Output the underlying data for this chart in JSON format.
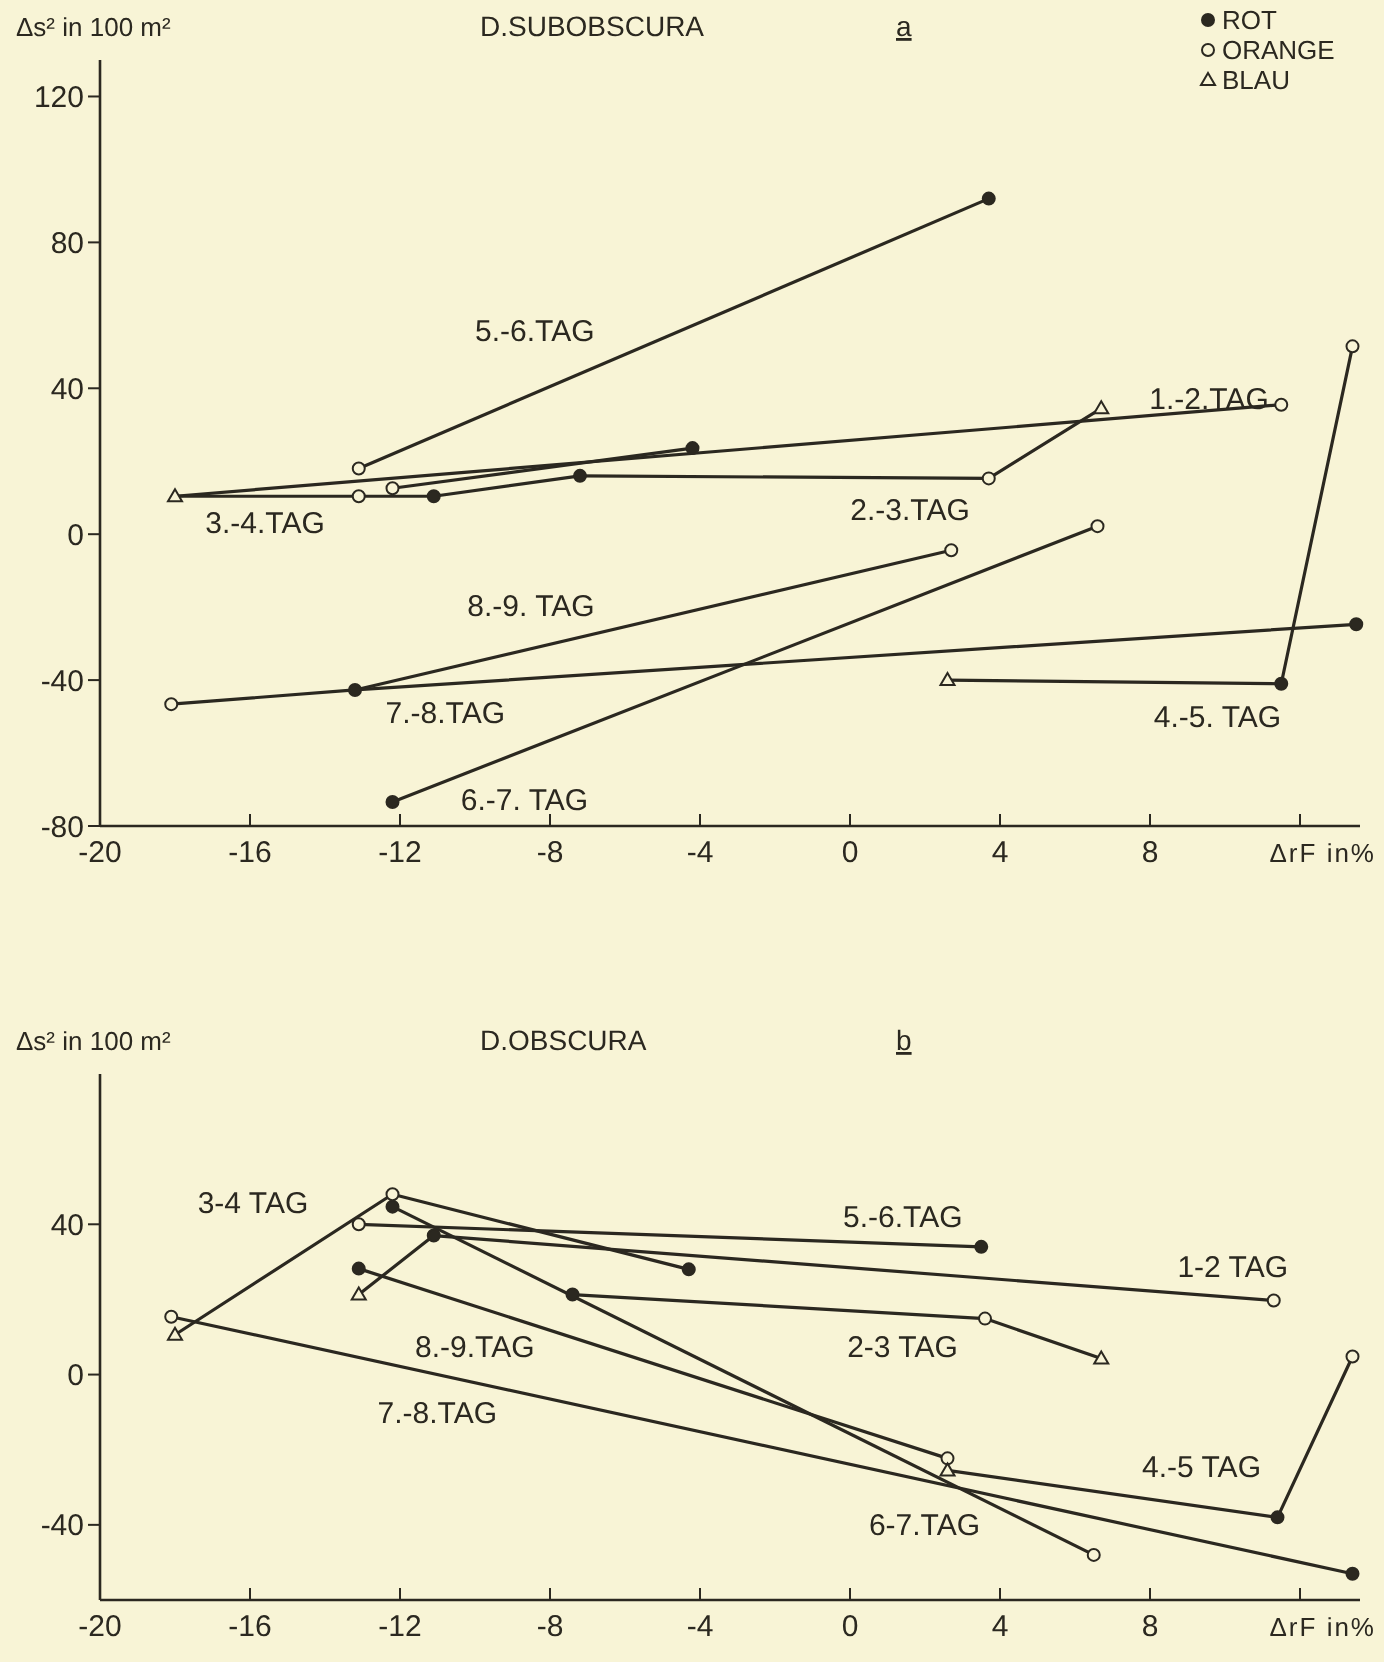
{
  "chart_data": [
    {
      "type": "line",
      "title": "D.SUBOBSCURA",
      "subtitle": "a",
      "xlabel": "ΔrF in%",
      "ylabel": "Δs² in 100 m²",
      "xlim": [
        -20,
        13.6
      ],
      "ylim": [
        -80,
        130
      ],
      "xticks": [
        -20,
        -16,
        -12,
        -8,
        -4,
        0,
        4,
        8,
        {
          "value": 12,
          "label": null
        }
      ],
      "yticks": [
        -80,
        -40,
        0,
        40,
        80,
        120
      ],
      "grid": false,
      "legend": "top right",
      "series": [
        {
          "name": "5.-6.TAG",
          "color": "#2b2820",
          "x": [
            -13.1,
            3.7
          ],
          "values": [
            18,
            92
          ]
        },
        {
          "color": "#2b2820",
          "x": [
            -12.2,
            -4.2
          ],
          "values": [
            12.6,
            23.6
          ]
        },
        {
          "name": "1.-2.TAG",
          "color": "#2b2820",
          "x": [
            -18,
            11.5
          ],
          "values": [
            10.4,
            35.5
          ]
        },
        {
          "name": "3.-4.TAG",
          "color": "#2b2820",
          "x": [
            -18,
            -13.1,
            -11.1,
            -7.2
          ],
          "values": [
            10.4,
            10.4,
            10.4,
            16
          ]
        },
        {
          "name": "2.-3.TAG",
          "color": "#2b2820",
          "x": [
            -7.2,
            3.7,
            6.7
          ],
          "values": [
            16,
            15.3,
            34.5
          ]
        },
        {
          "name": "8.-9. TAG",
          "color": "#2b2820",
          "x": [
            -13.2,
            2.7
          ],
          "values": [
            -42.7,
            -4.4
          ]
        },
        {
          "name": "7.-8.TAG",
          "color": "#2b2820",
          "x": [
            -18.1,
            -13.2,
            13.5
          ],
          "values": [
            -46.6,
            -42.7,
            -24.7
          ]
        },
        {
          "name": "4.-5. TAG",
          "color": "#2b2820",
          "x": [
            2.6,
            11.5,
            13.4
          ],
          "values": [
            -40,
            -41,
            51.5
          ]
        },
        {
          "name": "6.-7. TAG",
          "color": "#2b2820",
          "x": [
            -12.2,
            6.6
          ],
          "values": [
            -73.4,
            2.2
          ]
        },
        {
          "type": "scatter",
          "name": "ROT",
          "marker": "circle",
          "color": "#2b2820",
          "x": [
            3.7,
            -4.2,
            -11.1,
            -7.2,
            -13.2,
            13.5,
            11.5,
            -12.2
          ],
          "values": [
            92,
            23.6,
            10.4,
            16,
            -42.7,
            -24.7,
            -41,
            -73.4
          ]
        },
        {
          "type": "scatter",
          "name": "ORANGE",
          "marker": "circle",
          "color": "#f8f4d6",
          "x": [
            -13.1,
            -12.2,
            11.5,
            -13.1,
            3.7,
            2.7,
            -18.1,
            13.4,
            6.6
          ],
          "values": [
            18,
            12.6,
            35.5,
            10.4,
            15.3,
            -4.4,
            -46.6,
            51.5,
            2.2
          ]
        },
        {
          "type": "scatter",
          "name": "BLAU",
          "marker": "triangle",
          "color": "#f8f4d6",
          "x": [
            -18,
            6.7,
            2.6
          ],
          "values": [
            10.4,
            34.5,
            -40
          ]
        }
      ]
    },
    {
      "type": "line",
      "title": "D.OBSCURA",
      "subtitle": "b",
      "xlabel": "ΔrF in%",
      "ylabel": "Δs² in 100 m²",
      "xlim": [
        -20,
        13.6
      ],
      "ylim": [
        -60,
        80
      ],
      "xticks": [
        -20,
        -16,
        -12,
        -8,
        -4,
        0,
        4,
        8,
        {
          "value": 12,
          "label": null
        }
      ],
      "yticks": [
        -40,
        0,
        40
      ],
      "grid": false,
      "series": [
        {
          "name": "3-4 TAG",
          "color": "#2b2820",
          "x": [
            -18,
            -12.2,
            -4.3
          ],
          "values": [
            10.6,
            48,
            28
          ]
        },
        {
          "name": "5.-6.TAG",
          "color": "#2b2820",
          "x": [
            -13.1,
            3.5
          ],
          "values": [
            40,
            34
          ]
        },
        {
          "name": "1-2 TAG",
          "color": "#2b2820",
          "x": [
            -13.1,
            -11.1,
            11.3
          ],
          "values": [
            21.3,
            37,
            19.7
          ]
        },
        {
          "name": "6-7.TAG",
          "color": "#2b2820",
          "x": [
            -12.2,
            6.5
          ],
          "values": [
            44.7,
            -48
          ]
        },
        {
          "name": "8.-9.TAG",
          "color": "#2b2820",
          "x": [
            -13.1,
            2.6
          ],
          "values": [
            28.2,
            -22.3
          ]
        },
        {
          "name": "2-3 TAG",
          "color": "#2b2820",
          "x": [
            -7.4,
            3.6,
            6.7
          ],
          "values": [
            21.3,
            14.9,
            4.3
          ]
        },
        {
          "name": "7.-8.TAG",
          "color": "#2b2820",
          "x": [
            -18.1,
            13.4
          ],
          "values": [
            15.4,
            -53
          ]
        },
        {
          "name": "4.-5 TAG",
          "color": "#2b2820",
          "x": [
            2.6,
            11.4,
            13.4
          ],
          "values": [
            -25.5,
            -38,
            4.8
          ]
        },
        {
          "type": "scatter",
          "marker": "circle",
          "color": "#2b2820",
          "x": [
            -4.3,
            3.5,
            -11.1,
            -12.2,
            -13.1,
            -7.4,
            13.4,
            11.4
          ],
          "values": [
            28,
            34,
            37,
            44.7,
            28.2,
            21.3,
            -53,
            -38
          ]
        },
        {
          "type": "scatter",
          "marker": "circle",
          "color": "#f8f4d6",
          "x": [
            -12.2,
            -13.1,
            11.3,
            6.5,
            2.6,
            3.6,
            -18.1,
            13.4
          ],
          "values": [
            48,
            40,
            19.7,
            -48,
            -22.3,
            14.9,
            15.4,
            4.8
          ]
        },
        {
          "type": "scatter",
          "marker": "triangle",
          "color": "#f8f4d6",
          "x": [
            -18,
            -13.1,
            6.7,
            2.6
          ],
          "values": [
            10.6,
            21.3,
            4.3,
            -25.5
          ]
        }
      ]
    }
  ]
}
